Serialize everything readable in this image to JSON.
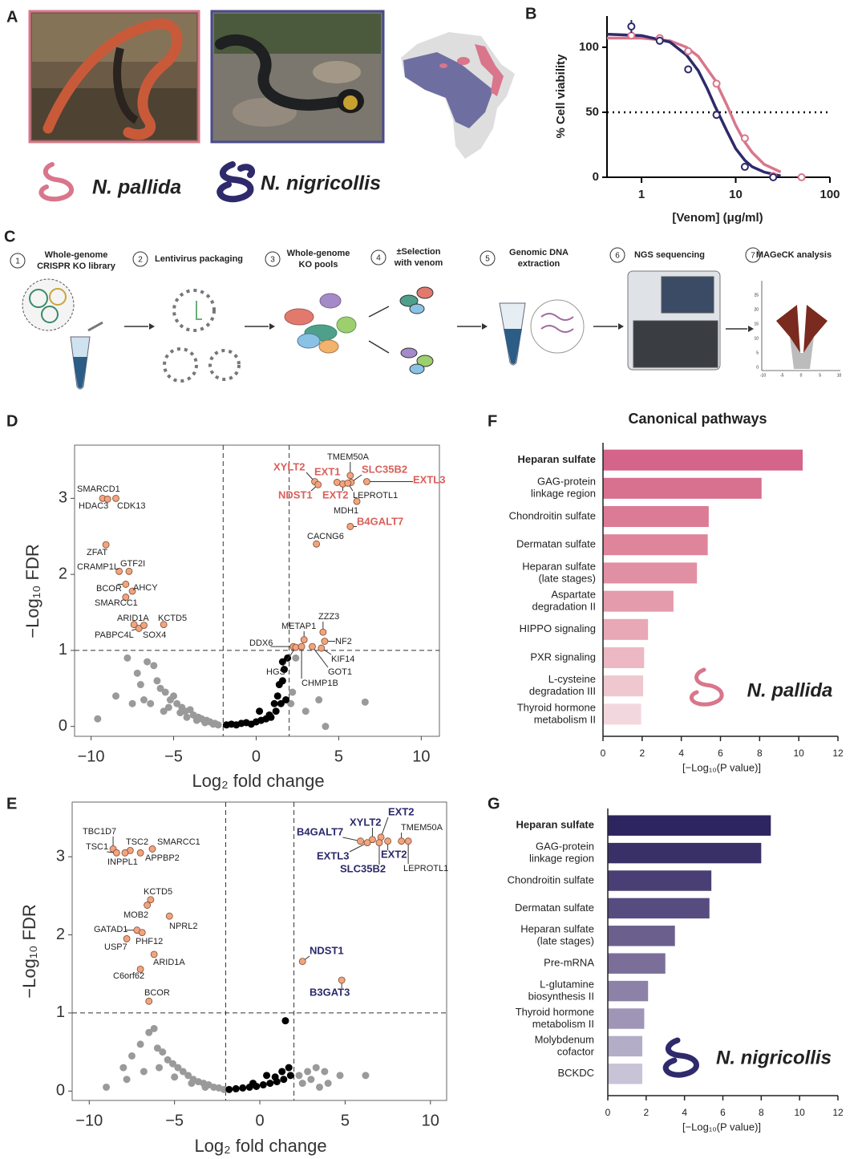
{
  "panel_labels": [
    "A",
    "B",
    "C",
    "D",
    "E",
    "F",
    "G"
  ],
  "species": [
    "N. pallida",
    "N. nigricollis"
  ],
  "workflow": {
    "steps": [
      {
        "number": 1,
        "label": [
          "Whole-genome",
          "CRISPR KO library"
        ]
      },
      {
        "number": 2,
        "label": [
          "Lentivirus packaging"
        ]
      },
      {
        "number": 3,
        "label": [
          "Whole-genome",
          "KO pools"
        ]
      },
      {
        "number": 4,
        "label": [
          "±Selection",
          "with venom"
        ]
      },
      {
        "number": 5,
        "label": [
          "Genomic DNA",
          "extraction"
        ]
      },
      {
        "number": 6,
        "label": [
          "NGS sequencing"
        ]
      },
      {
        "number": 7,
        "label": [
          "MAGeCK analysis"
        ]
      }
    ],
    "inset": {
      "xticks": [
        -10,
        -5,
        0,
        5,
        10
      ],
      "yticks": [
        0,
        5,
        10,
        15,
        20,
        25
      ]
    }
  },
  "chart_data": [
    {
      "type": "line",
      "xlabel": "[Venom] (μg/ml)",
      "ylabel": "% Cell viability",
      "xscale": "log",
      "xlim": [
        0.43,
        100
      ],
      "ylim": [
        0,
        124
      ],
      "xticks": [
        1,
        10,
        100
      ],
      "yticks": [
        0,
        50,
        100
      ],
      "reference_line": 50,
      "series": [
        {
          "style": "line",
          "color": "#d9768b",
          "x": [
            0.43,
            1,
            2,
            3,
            4,
            6,
            8,
            10,
            12.5,
            15,
            20,
            30
          ],
          "values": [
            107,
            107,
            105,
            100,
            93,
            75,
            56,
            40,
            27,
            19,
            10,
            4
          ]
        },
        {
          "style": "line",
          "color": "#2e2a6b",
          "x": [
            0.43,
            1,
            2,
            3,
            4,
            5,
            6,
            8,
            10,
            12.5,
            15,
            20,
            30
          ],
          "values": [
            110,
            109,
            104,
            94,
            82,
            68,
            55,
            36,
            22,
            13,
            8,
            4,
            1
          ]
        },
        {
          "style": "markers",
          "color": "#d9768b",
          "x": [
            0.78,
            1.56,
            3.13,
            6.25,
            12.5,
            25,
            50
          ],
          "values": [
            109,
            107,
            97,
            72,
            30,
            1,
            0
          ],
          "errors": [
            2,
            3,
            2,
            2,
            2,
            1,
            1
          ]
        },
        {
          "style": "markers",
          "color": "#2e2a6b",
          "x": [
            0.78,
            1.56,
            3.13,
            6.25,
            12.5,
            25
          ],
          "values": [
            116,
            105,
            83,
            48,
            8,
            0
          ],
          "errors": [
            5,
            3,
            2,
            3,
            2,
            1
          ]
        }
      ]
    },
    {
      "type": "scatter",
      "xlabel": "Log₂ fold change",
      "ylabel": "−Log₁₀ FDR",
      "xlim": [
        -11,
        11.1
      ],
      "ylim": [
        -0.13,
        3.7
      ],
      "xticks": [
        {
          "value": -10,
          "label": "−10"
        },
        {
          "value": -5,
          "label": "−5"
        },
        0,
        5,
        10
      ],
      "yticks": [
        0,
        1,
        2,
        3
      ],
      "thresholds": {
        "x": [
          -2,
          2
        ],
        "y": 1
      },
      "series": [
        {
          "color": "#9a9a9a",
          "x": [
            -9.6,
            -8.5,
            -7.8,
            -7.2,
            -7.0,
            -6.6,
            -6.2,
            -6.0,
            -5.8,
            -5.5,
            -5.2,
            -5.0,
            -4.8,
            -4.5,
            -4.3,
            -4.0,
            -3.8,
            -3.5,
            -3.3,
            -3.0,
            -2.8,
            -2.5,
            -2.3,
            -7.5,
            -6.8,
            -6.4,
            -5.6,
            -5.3,
            -4.6,
            -4.2,
            -3.6,
            -3.1,
            -2.6,
            2.2,
            2.4,
            3.0,
            3.8,
            4.2,
            6.6,
            2.1
          ],
          "values": [
            0.1,
            0.4,
            0.9,
            0.7,
            0.55,
            0.85,
            0.8,
            0.6,
            0.5,
            0.45,
            0.35,
            0.4,
            0.3,
            0.25,
            0.2,
            0.22,
            0.15,
            0.12,
            0.1,
            0.08,
            0.06,
            0.04,
            0.02,
            0.3,
            0.35,
            0.3,
            0.2,
            0.25,
            0.18,
            0.12,
            0.08,
            0.05,
            0.03,
            0.45,
            0.9,
            0.2,
            0.35,
            0.0,
            0.32,
            0.3
          ]
        },
        {
          "color": "#000000",
          "x": [
            -1.8,
            -1.5,
            -1.2,
            -0.9,
            -0.6,
            -0.3,
            0,
            0.3,
            0.6,
            0.9,
            1.2,
            1.5,
            1.8,
            0.2,
            0.8,
            1.1,
            1.4,
            1.6,
            1.7,
            1.9,
            1.3,
            1.6
          ],
          "values": [
            0.02,
            0.03,
            0.02,
            0.04,
            0.05,
            0.03,
            0.06,
            0.08,
            0.1,
            0.12,
            0.2,
            0.3,
            0.35,
            0.2,
            0.15,
            0.3,
            0.55,
            0.6,
            0.75,
            0.9,
            0.4,
            0.85
          ]
        }
      ],
      "labeled": {
        "color": "#f2a47f",
        "highlight_color": "#d9605a",
        "labels": [
          "SMARCD1",
          "HDAC3",
          "CDK13",
          "ZFAT",
          "CRAMP1L",
          "GTF2I",
          "BCOR",
          "AHCY",
          "SMARCC1",
          "ARID1A",
          "KCTD5",
          "PABPC4L",
          "SOX4",
          "XYLT2",
          "EXT1",
          "SLC35B2",
          "EXTL3",
          "TMEM50A",
          "NDST1",
          "EXT2",
          "LEPROTL1",
          "MDH1",
          "B4GALT7",
          "CACNG6",
          "ZZZ3",
          "METAP1",
          "DDX6",
          "NF2",
          "HGS",
          "KIF14",
          "GOT1",
          "CHMP1B"
        ],
        "x": [
          -9.3,
          -9.0,
          -8.5,
          -9.1,
          -8.3,
          -7.7,
          -7.9,
          -7.5,
          -7.9,
          -7.4,
          -5.6,
          -7.1,
          -6.8,
          3.55,
          4.9,
          5.75,
          6.7,
          5.7,
          3.75,
          5.25,
          5.55,
          6.1,
          5.7,
          3.65,
          4.05,
          2.9,
          2.25,
          4.15,
          2.4,
          3.95,
          3.4,
          2.75
        ],
        "values": [
          3.0,
          2.99,
          3.0,
          2.39,
          2.04,
          2.04,
          1.87,
          1.78,
          1.7,
          1.34,
          1.34,
          1.29,
          1.33,
          3.22,
          3.21,
          3.21,
          3.22,
          3.3,
          3.18,
          3.19,
          3.2,
          2.96,
          2.63,
          2.4,
          1.24,
          1.14,
          1.05,
          1.12,
          1.04,
          1.03,
          1.05,
          1.05
        ],
        "highlight": [
          false,
          false,
          false,
          false,
          false,
          false,
          false,
          false,
          false,
          false,
          false,
          false,
          false,
          true,
          true,
          true,
          true,
          false,
          true,
          true,
          false,
          false,
          true,
          false,
          false,
          false,
          false,
          false,
          false,
          false,
          false,
          false
        ]
      }
    },
    {
      "type": "scatter",
      "xlabel": "Log₂ fold change",
      "ylabel": "−Log₁₀ FDR",
      "xlim": [
        -11,
        10.95
      ],
      "ylim": [
        -0.12,
        3.7
      ],
      "xticks": [
        {
          "value": -10,
          "label": "−10"
        },
        {
          "value": -5,
          "label": "−5"
        },
        0,
        5,
        10
      ],
      "yticks": [
        0,
        1,
        2,
        3
      ],
      "thresholds": {
        "x": [
          -2,
          2
        ],
        "y": 1
      },
      "series": [
        {
          "color": "#9a9a9a",
          "x": [
            -9.0,
            -8.0,
            -7.5,
            -7.0,
            -6.5,
            -6.2,
            -6.0,
            -5.7,
            -5.4,
            -5.1,
            -4.8,
            -4.5,
            -4.2,
            -3.9,
            -3.6,
            -3.3,
            -3.0,
            -2.7,
            -2.4,
            -2.1,
            -7.8,
            -6.8,
            -5.9,
            -5.0,
            -4.0,
            -3.2,
            2.3,
            2.8,
            3.3,
            3.8,
            4.7,
            2.5,
            3.0,
            3.5,
            6.2,
            4.0
          ],
          "values": [
            0.05,
            0.3,
            0.45,
            0.6,
            0.75,
            0.8,
            0.55,
            0.5,
            0.4,
            0.35,
            0.3,
            0.25,
            0.2,
            0.15,
            0.12,
            0.1,
            0.08,
            0.05,
            0.04,
            0.02,
            0.15,
            0.25,
            0.3,
            0.18,
            0.1,
            0.05,
            0.2,
            0.25,
            0.3,
            0.25,
            0.2,
            0.1,
            0.15,
            0.05,
            0.2,
            0.1
          ]
        },
        {
          "color": "#000000",
          "x": [
            -1.8,
            -1.4,
            -1.0,
            -0.6,
            -0.2,
            0.2,
            0.6,
            1.0,
            1.4,
            1.8,
            0.4,
            0.9,
            1.3,
            1.5,
            1.7,
            -0.4
          ],
          "values": [
            0.02,
            0.03,
            0.04,
            0.05,
            0.06,
            0.08,
            0.1,
            0.12,
            0.15,
            0.2,
            0.2,
            0.18,
            0.25,
            0.9,
            0.3,
            0.1
          ]
        }
      ],
      "labeled": {
        "color": "#f2a47f",
        "highlight_color": "#2b2a6b",
        "labels": [
          "TBC1D7",
          "TSC1",
          "TSC2",
          "SMARCC1",
          "INPPL1",
          "APPBP2",
          "KCTD5",
          "MOB2",
          "NPRL2",
          "GATAD1",
          "PHF12",
          "USP7",
          "ARID1A",
          "C6orf62",
          "BCOR",
          "B4GALT7",
          "XYLT2",
          "EXT2",
          "TMEM50A",
          "EXTL3",
          "EXT2",
          "SLC35B2",
          "LEPROTL1",
          "NDST1",
          "B3GAT3"
        ],
        "x": [
          -8.6,
          -8.4,
          -7.6,
          -6.3,
          -7.9,
          -7.0,
          -6.4,
          -6.6,
          -5.3,
          -7.2,
          -6.9,
          -7.8,
          -6.2,
          -7.0,
          -6.5,
          5.9,
          6.6,
          7.1,
          8.3,
          6.3,
          7.5,
          7.0,
          8.7,
          2.5,
          4.8
        ],
        "values": [
          3.1,
          3.05,
          3.08,
          3.1,
          3.05,
          3.05,
          2.45,
          2.38,
          2.24,
          2.06,
          2.03,
          1.95,
          1.75,
          1.56,
          1.15,
          3.2,
          3.22,
          3.25,
          3.2,
          3.18,
          3.2,
          3.18,
          3.2,
          1.66,
          1.42
        ],
        "highlight": [
          false,
          false,
          false,
          false,
          false,
          false,
          false,
          false,
          false,
          false,
          false,
          false,
          false,
          false,
          false,
          true,
          true,
          true,
          false,
          true,
          true,
          true,
          false,
          true,
          true
        ]
      }
    },
    {
      "type": "bar",
      "orientation": "horizontal",
      "title": "Canonical pathways",
      "xlabel": "[−Log₁₀(P value)]",
      "annotation": "N. pallida",
      "categories": [
        [
          "Heparan sulfate"
        ],
        [
          "GAG-protein",
          "linkage region"
        ],
        [
          "Chondroitin sulfate"
        ],
        [
          "Dermatan sulfate"
        ],
        [
          "Heparan sulfate",
          "(late stages)"
        ],
        [
          "Aspartate",
          "degradation II"
        ],
        [
          "HIPPO signaling"
        ],
        [
          "PXR signaling"
        ],
        [
          "L-cysteine",
          "degradation III"
        ],
        [
          "Thyroid hormone",
          "metabolism II"
        ]
      ],
      "values": [
        10.2,
        8.1,
        5.4,
        5.35,
        4.8,
        3.6,
        2.3,
        2.1,
        2.05,
        1.95
      ],
      "colors": [
        "#d4648a",
        "#d8708f",
        "#db7b96",
        "#de859c",
        "#e190a4",
        "#e49bab",
        "#e8a8b5",
        "#ecb8c3",
        "#efc7cf",
        "#f2d8de"
      ],
      "bold": [
        0
      ],
      "xlim": [
        0,
        12
      ],
      "xticks": [
        0,
        2,
        4,
        6,
        8,
        10,
        12
      ]
    },
    {
      "type": "bar",
      "orientation": "horizontal",
      "xlabel": "[−Log₁₀(P value)]",
      "annotation": "N. nigricollis",
      "categories": [
        [
          "Heparan sulfate"
        ],
        [
          "GAG-protein",
          "linkage region"
        ],
        [
          "Chondroitin sulfate"
        ],
        [
          "Dermatan sulfate"
        ],
        [
          "Heparan sulfate",
          "(late stages)"
        ],
        [
          "Pre-mRNA"
        ],
        [
          "L-glutamine",
          "biosynthesis II"
        ],
        [
          "Thyroid hormone",
          "metabolism II"
        ],
        [
          "Molybdenum",
          "cofactor"
        ],
        [
          "BCKDC"
        ]
      ],
      "values": [
        8.5,
        8.0,
        5.4,
        5.3,
        3.5,
        3.0,
        2.1,
        1.9,
        1.8,
        1.8
      ],
      "colors": [
        "#2d2560",
        "#3a3068",
        "#4a3f75",
        "#574c80",
        "#6b5f8e",
        "#7b6f9a",
        "#8c82a8",
        "#9f96b7",
        "#b3adc7",
        "#c8c3d6"
      ],
      "bold": [
        0
      ],
      "xlim": [
        0,
        12
      ],
      "xticks": [
        0,
        2,
        4,
        6,
        8,
        10,
        12
      ]
    }
  ]
}
